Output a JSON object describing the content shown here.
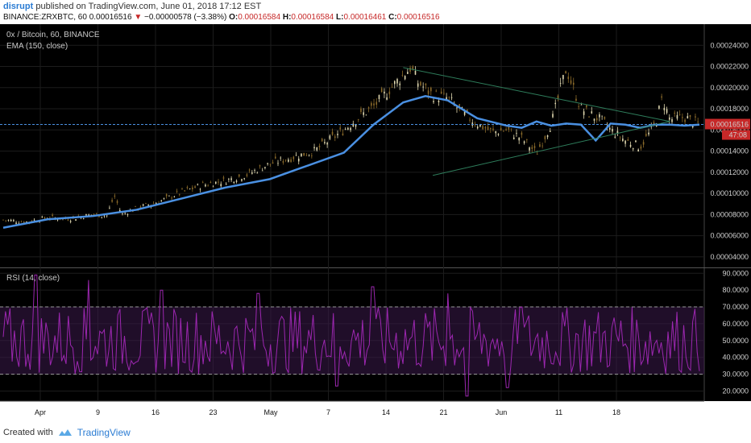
{
  "header": {
    "username": "disrupt",
    "published": " published on TradingView.com, June 01, 2018 17:12 EST",
    "symbol": "BINANCE:ZRXBTC, 60",
    "last": "0.00016516",
    "arrow": "▼",
    "change": "−0.00000578 (−3.38%)",
    "o_label": "O:",
    "o_value": "0.00016584",
    "h_label": "H:",
    "h_value": "0.00016584",
    "l_label": "L:",
    "l_value": "0.00016461",
    "c_label": "C:",
    "c_value": "0.00016516"
  },
  "price_pane": {
    "title": "0x / Bitcoin, 60, BINANCE",
    "indicator": "EMA (150, close)",
    "current_price_label": "0.00016516",
    "countdown_label": "47:08"
  },
  "rsi_pane": {
    "title": "RSI (14, close)"
  },
  "footer": {
    "created_with": "Created with",
    "brand": "TradingView"
  },
  "colors": {
    "background": "#000000",
    "ema": "#4a90e2",
    "rsi": "#9c27b0",
    "triangle": "#2e7d5b",
    "price_line": "#4a90e2",
    "price_badge": "#c62828"
  },
  "chart_data": [
    {
      "type": "line",
      "title": "0x / Bitcoin, 60, BINANCE",
      "x_ticks": [
        "Apr",
        "9",
        "16",
        "23",
        "May",
        "7",
        "14",
        "21",
        "Jun",
        "11",
        "18"
      ],
      "y_ticks": [
        "0.00024000",
        "0.00022000",
        "0.00020000",
        "0.00018000",
        "0.00016000",
        "0.00014000",
        "0.00012000",
        "0.00010000",
        "0.00008000",
        "0.00006000",
        "0.00004000"
      ],
      "ylim": [
        3e-05,
        0.00026
      ],
      "series": [
        {
          "name": "EMA (150, close)",
          "x": [
            0,
            6,
            12,
            18,
            24,
            30,
            36,
            40,
            46,
            50,
            54,
            57,
            60,
            64,
            68,
            70,
            72,
            74,
            76,
            78,
            80,
            82,
            84,
            86,
            88,
            90,
            92,
            94
          ],
          "values": [
            6.75e-05,
            7.55e-05,
            7.85e-05,
            8.45e-05,
            9.5e-05,
            0.0001055,
            0.0001135,
            0.0001235,
            0.0001385,
            0.000165,
            0.000186,
            0.000192,
            0.000188,
            0.000171,
            0.000164,
            0.000162,
            0.000168,
            0.000164,
            0.000166,
            0.000165,
            0.00015,
            0.000166,
            0.000165,
            0.000162,
            0.000165,
            0.000165,
            0.000164,
            0.000165
          ]
        },
        {
          "name": "Price",
          "x": [
            0,
            3,
            6,
            9,
            12,
            14,
            15,
            16,
            18,
            21,
            24,
            27,
            30,
            33,
            36,
            38,
            40,
            42,
            44,
            46,
            48,
            50,
            52,
            54,
            55,
            56,
            58,
            60,
            62,
            64,
            66,
            68,
            70,
            72,
            74,
            76,
            78,
            80,
            81,
            82,
            84,
            86,
            88,
            89,
            90,
            92,
            94
          ],
          "values": [
            7.5e-05,
            7.3e-05,
            7.7e-05,
            7.6e-05,
            8e-05,
            7.9e-05,
            9.8e-05,
            8e-05,
            8.6e-05,
            9.2e-05,
            0.000101,
            0.000108,
            0.000112,
            0.000118,
            0.000128,
            0.000132,
            0.000136,
            0.00014,
            0.00015,
            0.00016,
            0.000172,
            0.000182,
            0.000197,
            0.000212,
            0.000219,
            0.000205,
            0.000193,
            0.00019,
            0.000176,
            0.000166,
            0.000158,
            0.00016,
            0.000152,
            0.000138,
            0.000166,
            0.000218,
            0.00018,
            0.000172,
            0.000168,
            0.00016,
            0.00015,
            0.000144,
            0.000165,
            0.00019,
            0.00017,
            0.000172,
            0.000165
          ]
        }
      ],
      "triangle_upper": {
        "x": [
          54,
          90
        ],
        "values": [
          0.000219,
          0.000168
        ]
      },
      "triangle_lower": {
        "x": [
          58,
          90
        ],
        "values": [
          0.000117,
          0.000168
        ]
      },
      "current_price": 0.00016516
    },
    {
      "type": "line",
      "title": "RSI (14, close)",
      "y_ticks": [
        "90.0000",
        "80.0000",
        "70.0000",
        "60.0000",
        "50.0000",
        "40.0000",
        "30.0000",
        "20.0000"
      ],
      "ylim": [
        14,
        93
      ],
      "bands": [
        30,
        70
      ],
      "series": [
        {
          "name": "RSI (14, close)",
          "seed": 7,
          "mean": 50,
          "amplitude": 20,
          "points": 310,
          "spikes": [
            [
              45,
              89
            ],
            [
              110,
              86
            ],
            [
              200,
              80
            ],
            [
              320,
              78
            ],
            [
              418,
              23
            ],
            [
              462,
              82
            ],
            [
              556,
              78
            ],
            [
              580,
              17
            ],
            [
              630,
              22
            ],
            [
              648,
              70
            ]
          ]
        }
      ]
    }
  ]
}
